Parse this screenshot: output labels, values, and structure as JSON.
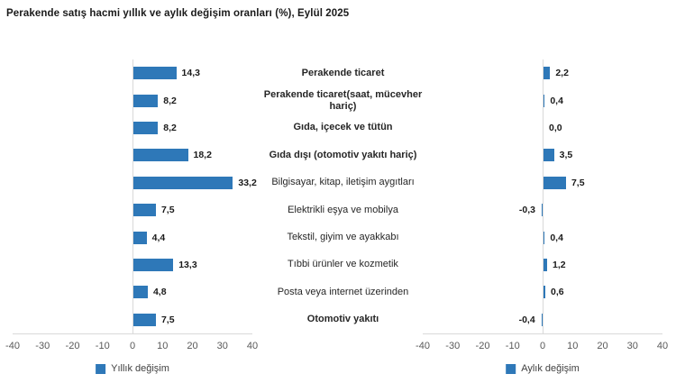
{
  "title": "Perakende satış hacmi yıllık ve aylık değişim oranları (%), Eylül 2025",
  "colors": {
    "bar": "#2e78b8",
    "axis_line": "#d9d9d9",
    "tick_text": "#595959",
    "category_text": "#262626",
    "value_text": "#1a1a1a"
  },
  "chart_data": {
    "type": "bar",
    "orientation": "horizontal",
    "title": "Perakende satış hacmi yıllık ve aylık değişim oranları (%), Eylül 2025",
    "categories": [
      "Perakende ticaret",
      "Perakende ticaret(saat, mücevher hariç)",
      "Gıda, içecek ve tütün",
      "Gıda dışı (otomotiv yakıtı hariç)",
      "Bilgisayar, kitap, iletişim aygıtları",
      "Elektrikli eşya ve mobilya",
      "Tekstil, giyim ve ayakkabı",
      "Tıbbi ürünler ve kozmetik",
      "Posta veya internet üzerinden",
      "Otomotiv yakıtı"
    ],
    "bold_categories": [
      true,
      true,
      true,
      true,
      false,
      false,
      false,
      false,
      false,
      true
    ],
    "series": [
      {
        "name": "Yıllık değişim",
        "values": [
          14.3,
          8.2,
          8.2,
          18.2,
          33.2,
          7.5,
          4.4,
          13.3,
          4.8,
          7.5
        ]
      },
      {
        "name": "Aylık değişim",
        "values": [
          2.2,
          0.4,
          0.0,
          3.5,
          7.5,
          -0.3,
          0.4,
          1.2,
          0.6,
          -0.4
        ]
      }
    ],
    "xlim": [
      -40,
      40
    ],
    "ticks": [
      -40,
      -30,
      -20,
      -10,
      0,
      10,
      20,
      30,
      40
    ],
    "value_labels": {
      "annual": [
        "14,3",
        "8,2",
        "8,2",
        "18,2",
        "33,2",
        "7,5",
        "4,4",
        "13,3",
        "4,8",
        "7,5"
      ],
      "monthly": [
        "2,2",
        "0,4",
        "0,0",
        "3,5",
        "7,5",
        "-0,3",
        "0,4",
        "1,2",
        "0,6",
        "-0,4"
      ]
    },
    "legend_position": "bottom",
    "grid": false
  }
}
